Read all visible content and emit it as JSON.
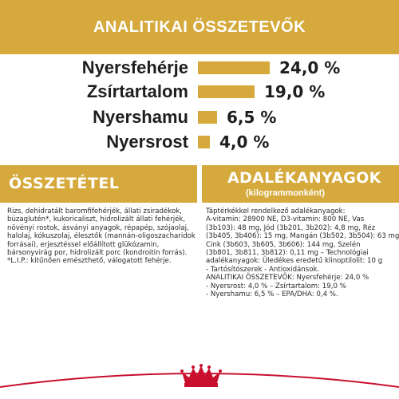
{
  "header": {
    "title": "ANALITIKAI ÖSSZETEVŐK"
  },
  "colors": {
    "gold": "#d6a93c",
    "brand_red": "#c8102e",
    "text": "#1e1e1e"
  },
  "nutrients": [
    {
      "label": "Nyersfehérje",
      "value": "24,0 %",
      "percent": 24.0
    },
    {
      "label": "Zsírtartalom",
      "value": "19,0 %",
      "percent": 19.0
    },
    {
      "label": "Nyershamu",
      "value": "6,5 %",
      "percent": 6.5
    },
    {
      "label": "Nyersrost",
      "value": "4,0 %",
      "percent": 4.0
    }
  ],
  "composition": {
    "title": "ÖSSZETÉTEL",
    "lines": [
      "Rizs, dehidratált baromfifehérjék, állati zsiradékok,",
      "búzaglutén*, kukoricaliszt, hidrolizált állati fehérjék,",
      "növényi rostok, ásványi anyagok, répapép, szójaolaj,",
      "halolaj, kókuszolaj, élesztők (mannán-oligoszacharidok",
      "forrásai), erjesztéssel előállított glükózamin,",
      "bársonyvirág por, hidrolizált porc (kondroitin forrás).",
      "*L.I.P.: kitűnően emészthető, válogatott fehérje."
    ]
  },
  "additives": {
    "title": "ADALÉKANYAGOK",
    "subtitle": "(kilogrammonként)",
    "lines": [
      "Táptérkékkel rendelkező adalékanyagok:",
      "A-vitamin: 28900 NE, D3-vitamin: 800 NE, Vas",
      "(3b103): 48 mg, Jód (3b201, 3b202): 4,8 mg, Réz",
      "(3b405, 3b406): 15 mg, Mangán (3b502, 3b504): 63 mg,",
      "Cink (3b603, 3b605, 3b606): 144 mg, Szelén",
      "(3b801, 3b811, 3b812): 0,11 mg – Technológiai",
      "adalékanyagok: Üledékes eredetű klinoptilolit: 10 g",
      "- Tartósítószerek - Antioxidánsok.",
      "ANALITIKAI ÖSSZETEVŐK: Nyersfehérje: 24,0 %",
      "- Nyersrost: 4,0 % – Zsírtartalom: 19,0 %",
      "- Nyershamu: 6,5 % – EPA/DHA: 0,4 %."
    ]
  },
  "footer": {
    "logo": "royal-canin-crown-logo"
  }
}
